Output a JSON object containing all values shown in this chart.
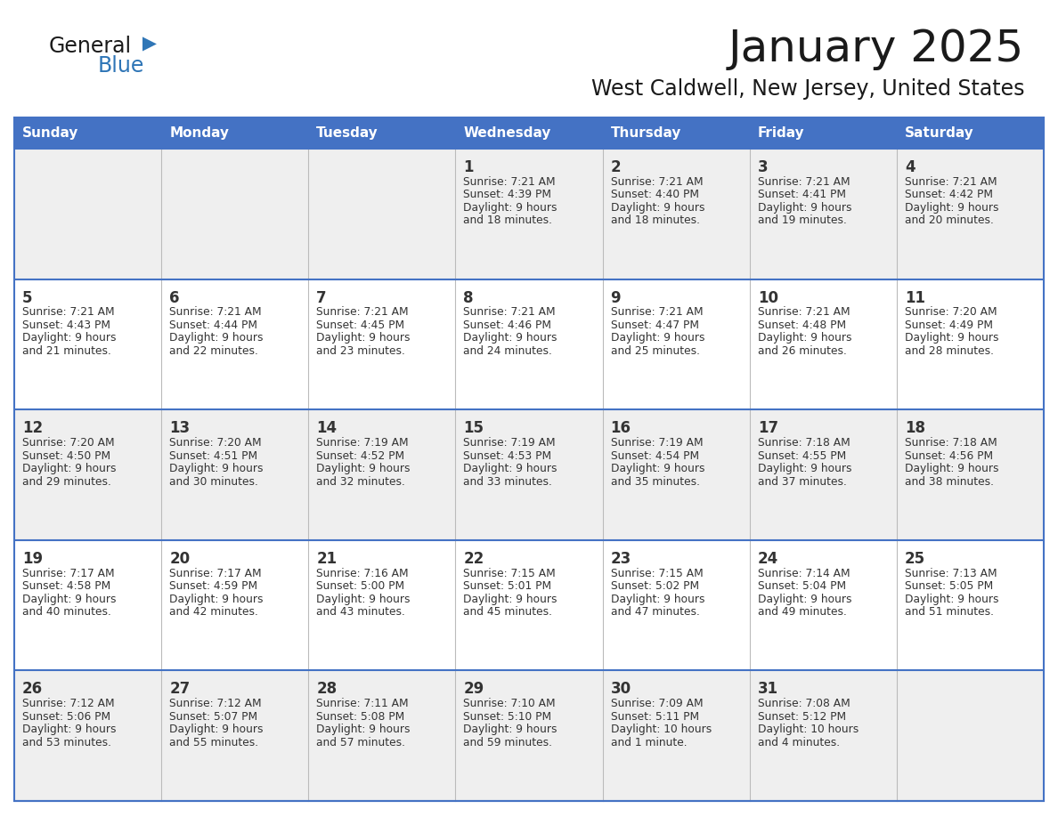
{
  "title": "January 2025",
  "subtitle": "West Caldwell, New Jersey, United States",
  "days_of_week": [
    "Sunday",
    "Monday",
    "Tuesday",
    "Wednesday",
    "Thursday",
    "Friday",
    "Saturday"
  ],
  "header_bg": "#4472C4",
  "header_text": "#FFFFFF",
  "cell_bg_odd": "#EFEFEF",
  "cell_bg_even": "#FFFFFF",
  "cell_border": "#4472C4",
  "day_num_color": "#333333",
  "text_color": "#333333",
  "logo_general_color": "#1a1a1a",
  "logo_blue_color": "#2E75B6",
  "title_color": "#1a1a1a",
  "calendar": [
    [
      {
        "day": null,
        "sunrise": null,
        "sunset": null,
        "daylight": null
      },
      {
        "day": null,
        "sunrise": null,
        "sunset": null,
        "daylight": null
      },
      {
        "day": null,
        "sunrise": null,
        "sunset": null,
        "daylight": null
      },
      {
        "day": 1,
        "sunrise": "7:21 AM",
        "sunset": "4:39 PM",
        "daylight": "9 hours",
        "daylight2": "and 18 minutes."
      },
      {
        "day": 2,
        "sunrise": "7:21 AM",
        "sunset": "4:40 PM",
        "daylight": "9 hours",
        "daylight2": "and 18 minutes."
      },
      {
        "day": 3,
        "sunrise": "7:21 AM",
        "sunset": "4:41 PM",
        "daylight": "9 hours",
        "daylight2": "and 19 minutes."
      },
      {
        "day": 4,
        "sunrise": "7:21 AM",
        "sunset": "4:42 PM",
        "daylight": "9 hours",
        "daylight2": "and 20 minutes."
      }
    ],
    [
      {
        "day": 5,
        "sunrise": "7:21 AM",
        "sunset": "4:43 PM",
        "daylight": "9 hours",
        "daylight2": "and 21 minutes."
      },
      {
        "day": 6,
        "sunrise": "7:21 AM",
        "sunset": "4:44 PM",
        "daylight": "9 hours",
        "daylight2": "and 22 minutes."
      },
      {
        "day": 7,
        "sunrise": "7:21 AM",
        "sunset": "4:45 PM",
        "daylight": "9 hours",
        "daylight2": "and 23 minutes."
      },
      {
        "day": 8,
        "sunrise": "7:21 AM",
        "sunset": "4:46 PM",
        "daylight": "9 hours",
        "daylight2": "and 24 minutes."
      },
      {
        "day": 9,
        "sunrise": "7:21 AM",
        "sunset": "4:47 PM",
        "daylight": "9 hours",
        "daylight2": "and 25 minutes."
      },
      {
        "day": 10,
        "sunrise": "7:21 AM",
        "sunset": "4:48 PM",
        "daylight": "9 hours",
        "daylight2": "and 26 minutes."
      },
      {
        "day": 11,
        "sunrise": "7:20 AM",
        "sunset": "4:49 PM",
        "daylight": "9 hours",
        "daylight2": "and 28 minutes."
      }
    ],
    [
      {
        "day": 12,
        "sunrise": "7:20 AM",
        "sunset": "4:50 PM",
        "daylight": "9 hours",
        "daylight2": "and 29 minutes."
      },
      {
        "day": 13,
        "sunrise": "7:20 AM",
        "sunset": "4:51 PM",
        "daylight": "9 hours",
        "daylight2": "and 30 minutes."
      },
      {
        "day": 14,
        "sunrise": "7:19 AM",
        "sunset": "4:52 PM",
        "daylight": "9 hours",
        "daylight2": "and 32 minutes."
      },
      {
        "day": 15,
        "sunrise": "7:19 AM",
        "sunset": "4:53 PM",
        "daylight": "9 hours",
        "daylight2": "and 33 minutes."
      },
      {
        "day": 16,
        "sunrise": "7:19 AM",
        "sunset": "4:54 PM",
        "daylight": "9 hours",
        "daylight2": "and 35 minutes."
      },
      {
        "day": 17,
        "sunrise": "7:18 AM",
        "sunset": "4:55 PM",
        "daylight": "9 hours",
        "daylight2": "and 37 minutes."
      },
      {
        "day": 18,
        "sunrise": "7:18 AM",
        "sunset": "4:56 PM",
        "daylight": "9 hours",
        "daylight2": "and 38 minutes."
      }
    ],
    [
      {
        "day": 19,
        "sunrise": "7:17 AM",
        "sunset": "4:58 PM",
        "daylight": "9 hours",
        "daylight2": "and 40 minutes."
      },
      {
        "day": 20,
        "sunrise": "7:17 AM",
        "sunset": "4:59 PM",
        "daylight": "9 hours",
        "daylight2": "and 42 minutes."
      },
      {
        "day": 21,
        "sunrise": "7:16 AM",
        "sunset": "5:00 PM",
        "daylight": "9 hours",
        "daylight2": "and 43 minutes."
      },
      {
        "day": 22,
        "sunrise": "7:15 AM",
        "sunset": "5:01 PM",
        "daylight": "9 hours",
        "daylight2": "and 45 minutes."
      },
      {
        "day": 23,
        "sunrise": "7:15 AM",
        "sunset": "5:02 PM",
        "daylight": "9 hours",
        "daylight2": "and 47 minutes."
      },
      {
        "day": 24,
        "sunrise": "7:14 AM",
        "sunset": "5:04 PM",
        "daylight": "9 hours",
        "daylight2": "and 49 minutes."
      },
      {
        "day": 25,
        "sunrise": "7:13 AM",
        "sunset": "5:05 PM",
        "daylight": "9 hours",
        "daylight2": "and 51 minutes."
      }
    ],
    [
      {
        "day": 26,
        "sunrise": "7:12 AM",
        "sunset": "5:06 PM",
        "daylight": "9 hours",
        "daylight2": "and 53 minutes."
      },
      {
        "day": 27,
        "sunrise": "7:12 AM",
        "sunset": "5:07 PM",
        "daylight": "9 hours",
        "daylight2": "and 55 minutes."
      },
      {
        "day": 28,
        "sunrise": "7:11 AM",
        "sunset": "5:08 PM",
        "daylight": "9 hours",
        "daylight2": "and 57 minutes."
      },
      {
        "day": 29,
        "sunrise": "7:10 AM",
        "sunset": "5:10 PM",
        "daylight": "9 hours",
        "daylight2": "and 59 minutes."
      },
      {
        "day": 30,
        "sunrise": "7:09 AM",
        "sunset": "5:11 PM",
        "daylight": "10 hours",
        "daylight2": "and 1 minute."
      },
      {
        "day": 31,
        "sunrise": "7:08 AM",
        "sunset": "5:12 PM",
        "daylight": "10 hours",
        "daylight2": "and 4 minutes."
      },
      {
        "day": null,
        "sunrise": null,
        "sunset": null,
        "daylight": null,
        "daylight2": null
      }
    ]
  ]
}
